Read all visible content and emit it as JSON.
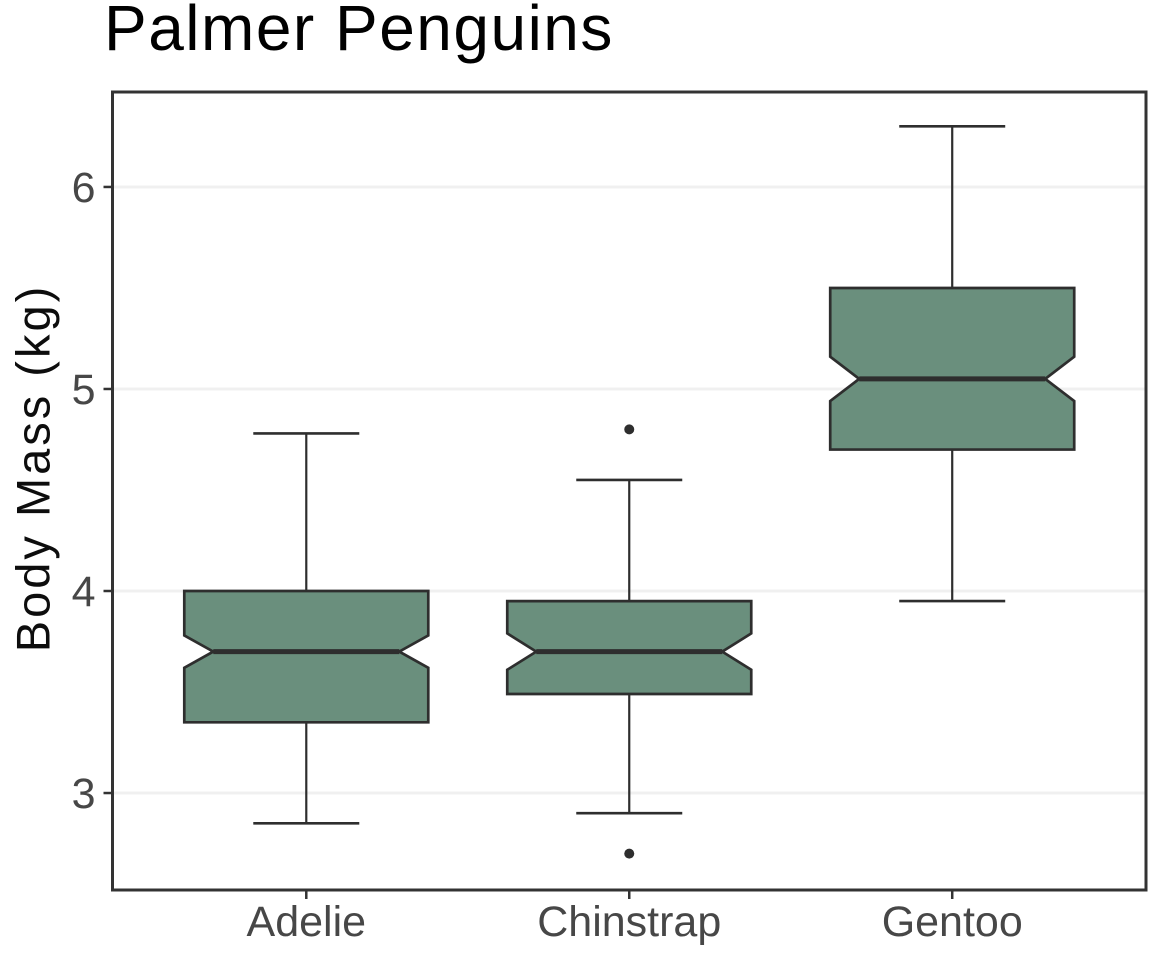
{
  "page": {
    "background": "#ffffff"
  },
  "chart_data": {
    "type": "boxplot",
    "title": "Palmer Penguins",
    "ylabel": "Body Mass (kg)",
    "xlabel": "",
    "categories": [
      "Adelie",
      "Chinstrap",
      "Gentoo"
    ],
    "ylim": [
      2.52,
      6.47
    ],
    "yticks": [
      3,
      4,
      5,
      6
    ],
    "grid": "major-horizontal-only",
    "legend": "none",
    "notched": true,
    "series": [
      {
        "category": "Adelie",
        "whisker_low": 2.85,
        "q1": 3.35,
        "median": 3.7,
        "q3": 4.0,
        "whisker_high": 4.78,
        "notch_low": 3.62,
        "notch_high": 3.78,
        "outliers": []
      },
      {
        "category": "Chinstrap",
        "whisker_low": 2.9,
        "q1": 3.49,
        "median": 3.7,
        "q3": 3.95,
        "whisker_high": 4.55,
        "notch_low": 3.61,
        "notch_high": 3.79,
        "outliers": [
          2.7,
          4.8
        ]
      },
      {
        "category": "Gentoo",
        "whisker_low": 3.95,
        "q1": 4.7,
        "median": 5.05,
        "q3": 5.5,
        "whisker_high": 6.3,
        "notch_low": 4.94,
        "notch_high": 5.16,
        "outliers": []
      }
    ],
    "colors": {
      "box_fill": "#6a8f7d",
      "box_stroke": "#2e2e2e",
      "median": "#2e2e2e",
      "whisker": "#2e2e2e",
      "outlier": "#2e2e2e",
      "grid": "#f0f0f0",
      "panel_border": "#333333",
      "tick_mark": "#333333",
      "tick_label": "#474747",
      "title_color": "#000000",
      "axis_label_color": "#0d0d0d",
      "panel_background": "#ffffff"
    }
  }
}
